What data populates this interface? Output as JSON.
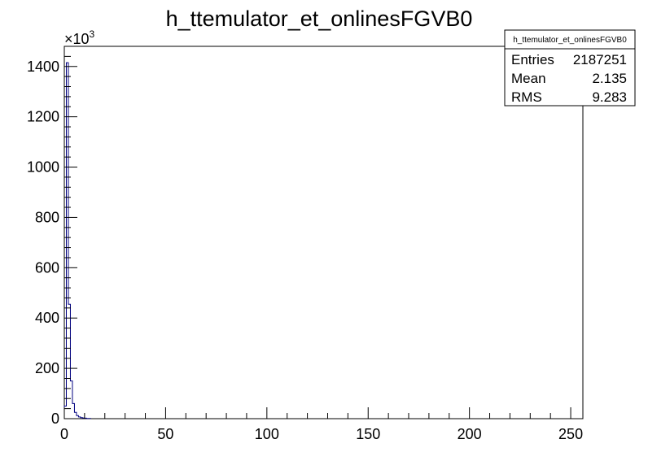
{
  "chart_data": {
    "type": "histogram",
    "title": "h_ttemulator_et_onlinesFGVB0",
    "xlabel": "",
    "ylabel": "",
    "y_multiplier_label": "×10",
    "y_multiplier_exponent": "3",
    "xlim": [
      0,
      256
    ],
    "ylim": [
      0,
      1480
    ],
    "x_ticks": [
      0,
      50,
      100,
      150,
      200,
      250
    ],
    "y_ticks": [
      0,
      200,
      400,
      600,
      800,
      1000,
      1200,
      1400
    ],
    "bin_width": 1,
    "bins": [
      {
        "x": 0,
        "y": 50
      },
      {
        "x": 1,
        "y": 1415
      },
      {
        "x": 2,
        "y": 455
      },
      {
        "x": 3,
        "y": 150
      },
      {
        "x": 4,
        "y": 60
      },
      {
        "x": 5,
        "y": 25
      },
      {
        "x": 6,
        "y": 12
      },
      {
        "x": 7,
        "y": 7
      },
      {
        "x": 8,
        "y": 4
      },
      {
        "x": 9,
        "y": 3
      },
      {
        "x": 10,
        "y": 2
      },
      {
        "x": 11,
        "y": 1
      },
      {
        "x": 12,
        "y": 1
      }
    ],
    "line_color": "#000080",
    "grid": false,
    "stats": {
      "name": "h_ttemulator_et_onlinesFGVB0",
      "entries_label": "Entries",
      "entries_value": "2187251",
      "mean_label": "Mean",
      "mean_value": "2.135",
      "rms_label": "RMS",
      "rms_value": "9.283"
    }
  }
}
